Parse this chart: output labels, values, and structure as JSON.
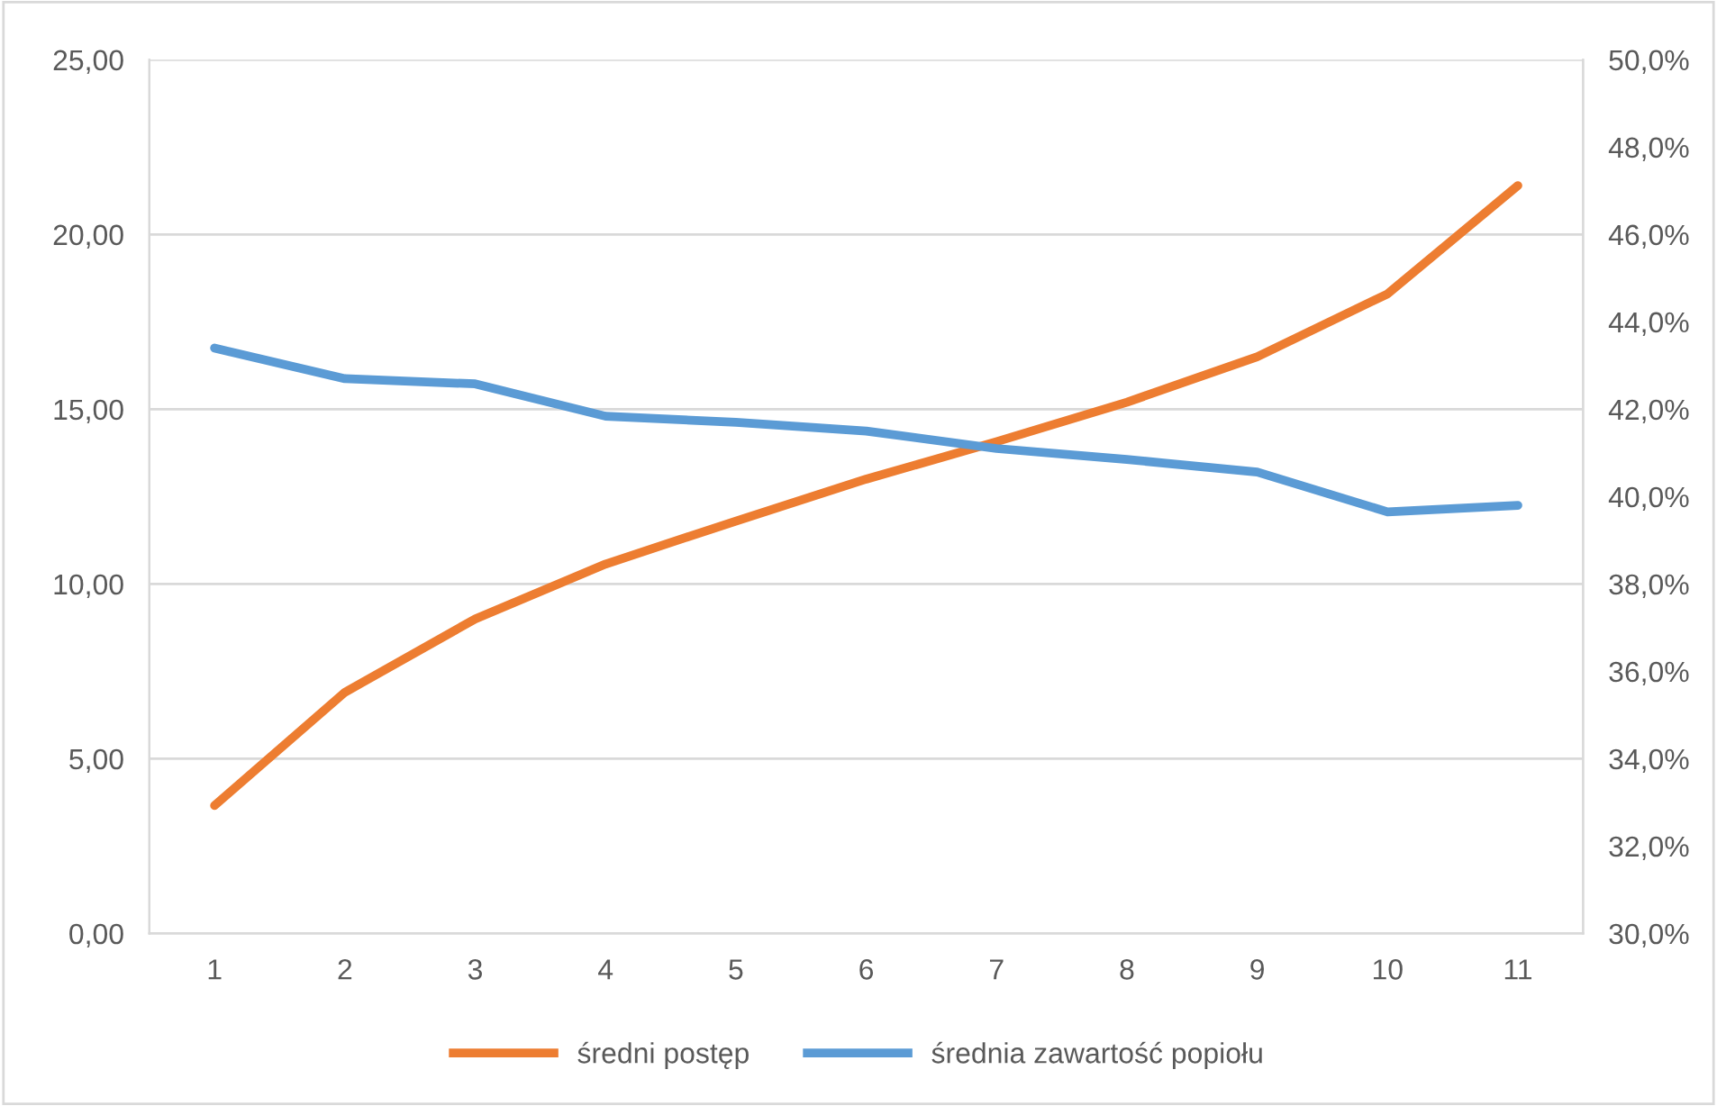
{
  "chart_data": {
    "type": "line",
    "categories": [
      "1",
      "2",
      "3",
      "4",
      "5",
      "6",
      "7",
      "8",
      "9",
      "10",
      "11"
    ],
    "series": [
      {
        "name": "średni postęp",
        "color": "#ed7d31",
        "values": [
          3.66,
          6.9,
          9.0,
          10.57,
          11.8,
          13.0,
          14.07,
          15.2,
          16.5,
          18.3,
          21.4
        ]
      },
      {
        "name": "średnia zawartość popiołu",
        "color": "#5b9bd5",
        "axis": "y2",
        "values": [
          43.4,
          42.7,
          42.58,
          41.84,
          41.7,
          41.5,
          41.1,
          40.85,
          40.56,
          39.65,
          39.8
        ]
      }
    ],
    "ylim": [
      0,
      25
    ],
    "yticks": [
      {
        "value": 0,
        "label": "0,00"
      },
      {
        "value": 5,
        "label": "5,00"
      },
      {
        "value": 10,
        "label": "10,00"
      },
      {
        "value": 15,
        "label": "15,00"
      },
      {
        "value": 20,
        "label": "20,00"
      },
      {
        "value": 25,
        "label": "25,00"
      }
    ],
    "y2lim": [
      30,
      50
    ],
    "y2ticks": [
      {
        "value": 30,
        "label": "30,0%"
      },
      {
        "value": 32,
        "label": "32,0%"
      },
      {
        "value": 34,
        "label": "34,0%"
      },
      {
        "value": 36,
        "label": "36,0%"
      },
      {
        "value": 38,
        "label": "38,0%"
      },
      {
        "value": 40,
        "label": "40,0%"
      },
      {
        "value": 42,
        "label": "42,0%"
      },
      {
        "value": 44,
        "label": "44,0%"
      },
      {
        "value": 46,
        "label": "46,0%"
      },
      {
        "value": 48,
        "label": "48,0%"
      },
      {
        "value": 50,
        "label": "50,0%"
      }
    ],
    "grid": "y",
    "legend": "bottom",
    "marker": "none",
    "line_style": "solid"
  }
}
